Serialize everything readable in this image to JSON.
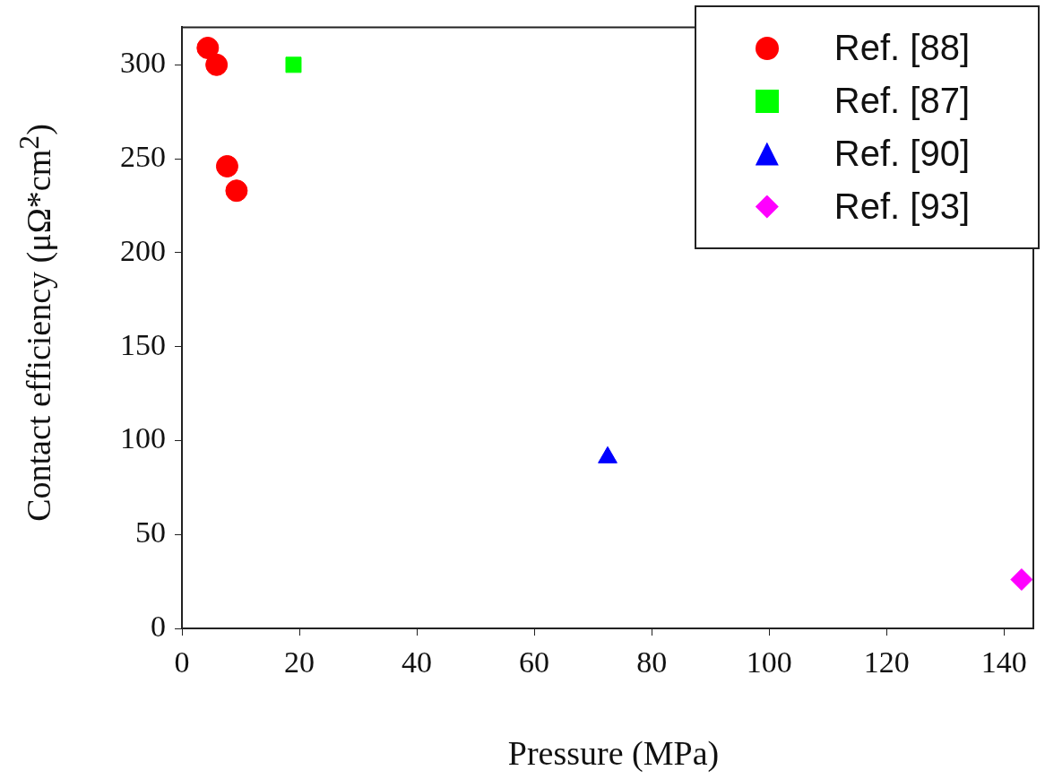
{
  "chart_data": {
    "type": "scatter",
    "xlabel": "Pressure (MPa)",
    "ylabel": "Contact efficiency (μΩ*cm$^{2}$)",
    "xlim": [
      0,
      145
    ],
    "xticks": [
      0,
      20,
      40,
      60,
      80,
      100,
      120,
      140
    ],
    "ylim": [
      0,
      320
    ],
    "yticks": [
      0,
      50,
      100,
      150,
      200,
      250,
      300
    ],
    "legend": "top right",
    "series": [
      {
        "name": "Ref. [88]",
        "color": "#ff0000",
        "marker": "circle",
        "x": [
          4.4,
          5.9,
          7.7,
          9.3
        ],
        "values": [
          309,
          300,
          246,
          233
        ]
      },
      {
        "name": "Ref. [87]",
        "color": "#00ff00",
        "marker": "square",
        "x": [
          19
        ],
        "values": [
          300
        ]
      },
      {
        "name": "Ref. [90]",
        "color": "#0000ff",
        "marker": "triangle",
        "x": [
          72.5
        ],
        "values": [
          91
        ]
      },
      {
        "name": "Ref. [93]",
        "color": "#ff00ff",
        "marker": "diamond",
        "x": [
          143
        ],
        "values": [
          26
        ]
      }
    ]
  }
}
